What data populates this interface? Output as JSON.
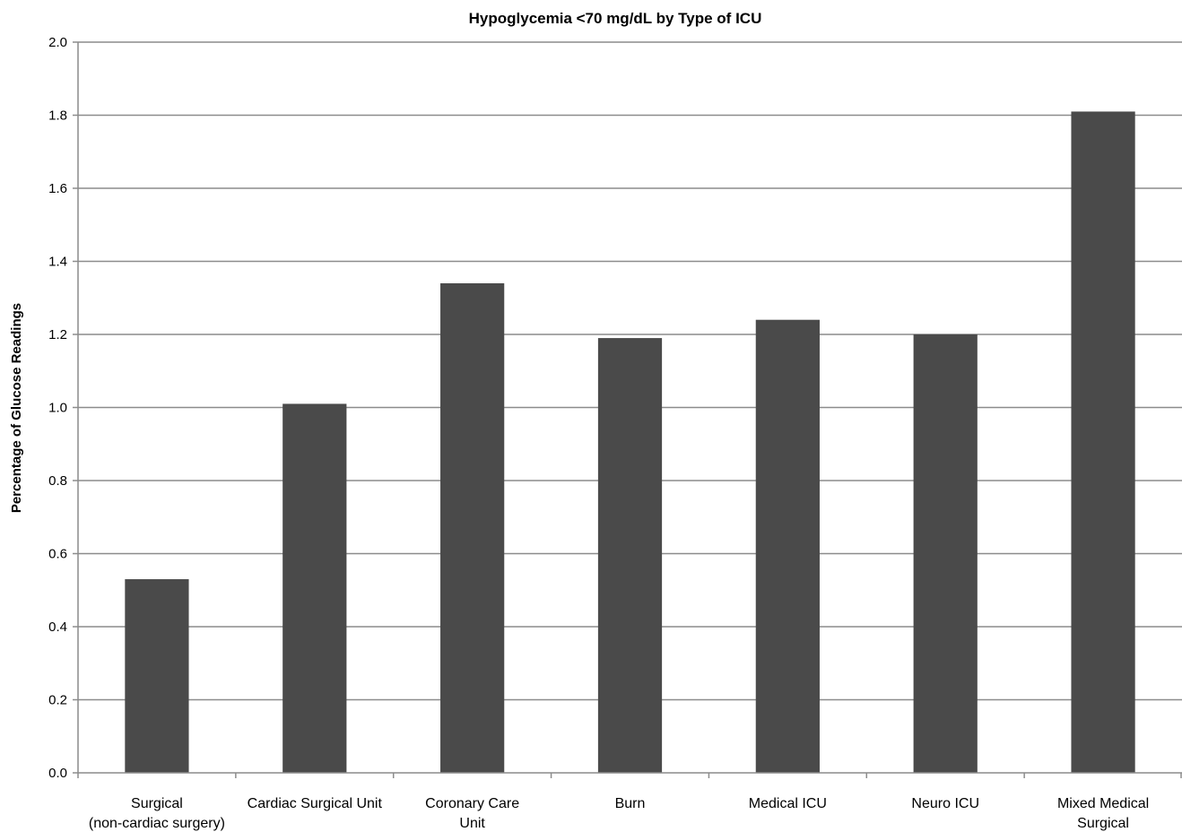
{
  "chart_data": {
    "type": "bar",
    "title": "Hypoglycemia <70 mg/dL by Type of ICU",
    "xlabel": "",
    "ylabel": "Percentage of Glucose Readings",
    "categories": [
      [
        "Surgical",
        "(non-cardiac surgery)"
      ],
      [
        "Cardiac Surgical Unit"
      ],
      [
        "Coronary Care",
        "Unit"
      ],
      [
        "Burn"
      ],
      [
        "Medical ICU"
      ],
      [
        "Neuro ICU"
      ],
      [
        "Mixed Medical",
        "Surgical"
      ]
    ],
    "values": [
      0.53,
      1.01,
      1.34,
      1.19,
      1.24,
      1.2,
      1.81
    ],
    "ylim": [
      0,
      2.0
    ],
    "yticks": [
      "0.0",
      "0.2",
      "0.4",
      "0.6",
      "0.8",
      "1.0",
      "1.2",
      "1.4",
      "1.6",
      "1.8",
      "2.0"
    ],
    "grid": true,
    "legend": "none",
    "colors": {
      "bar": "#4a4a4a",
      "grid": "#8c8c8c",
      "axis": "#8c8c8c"
    }
  }
}
